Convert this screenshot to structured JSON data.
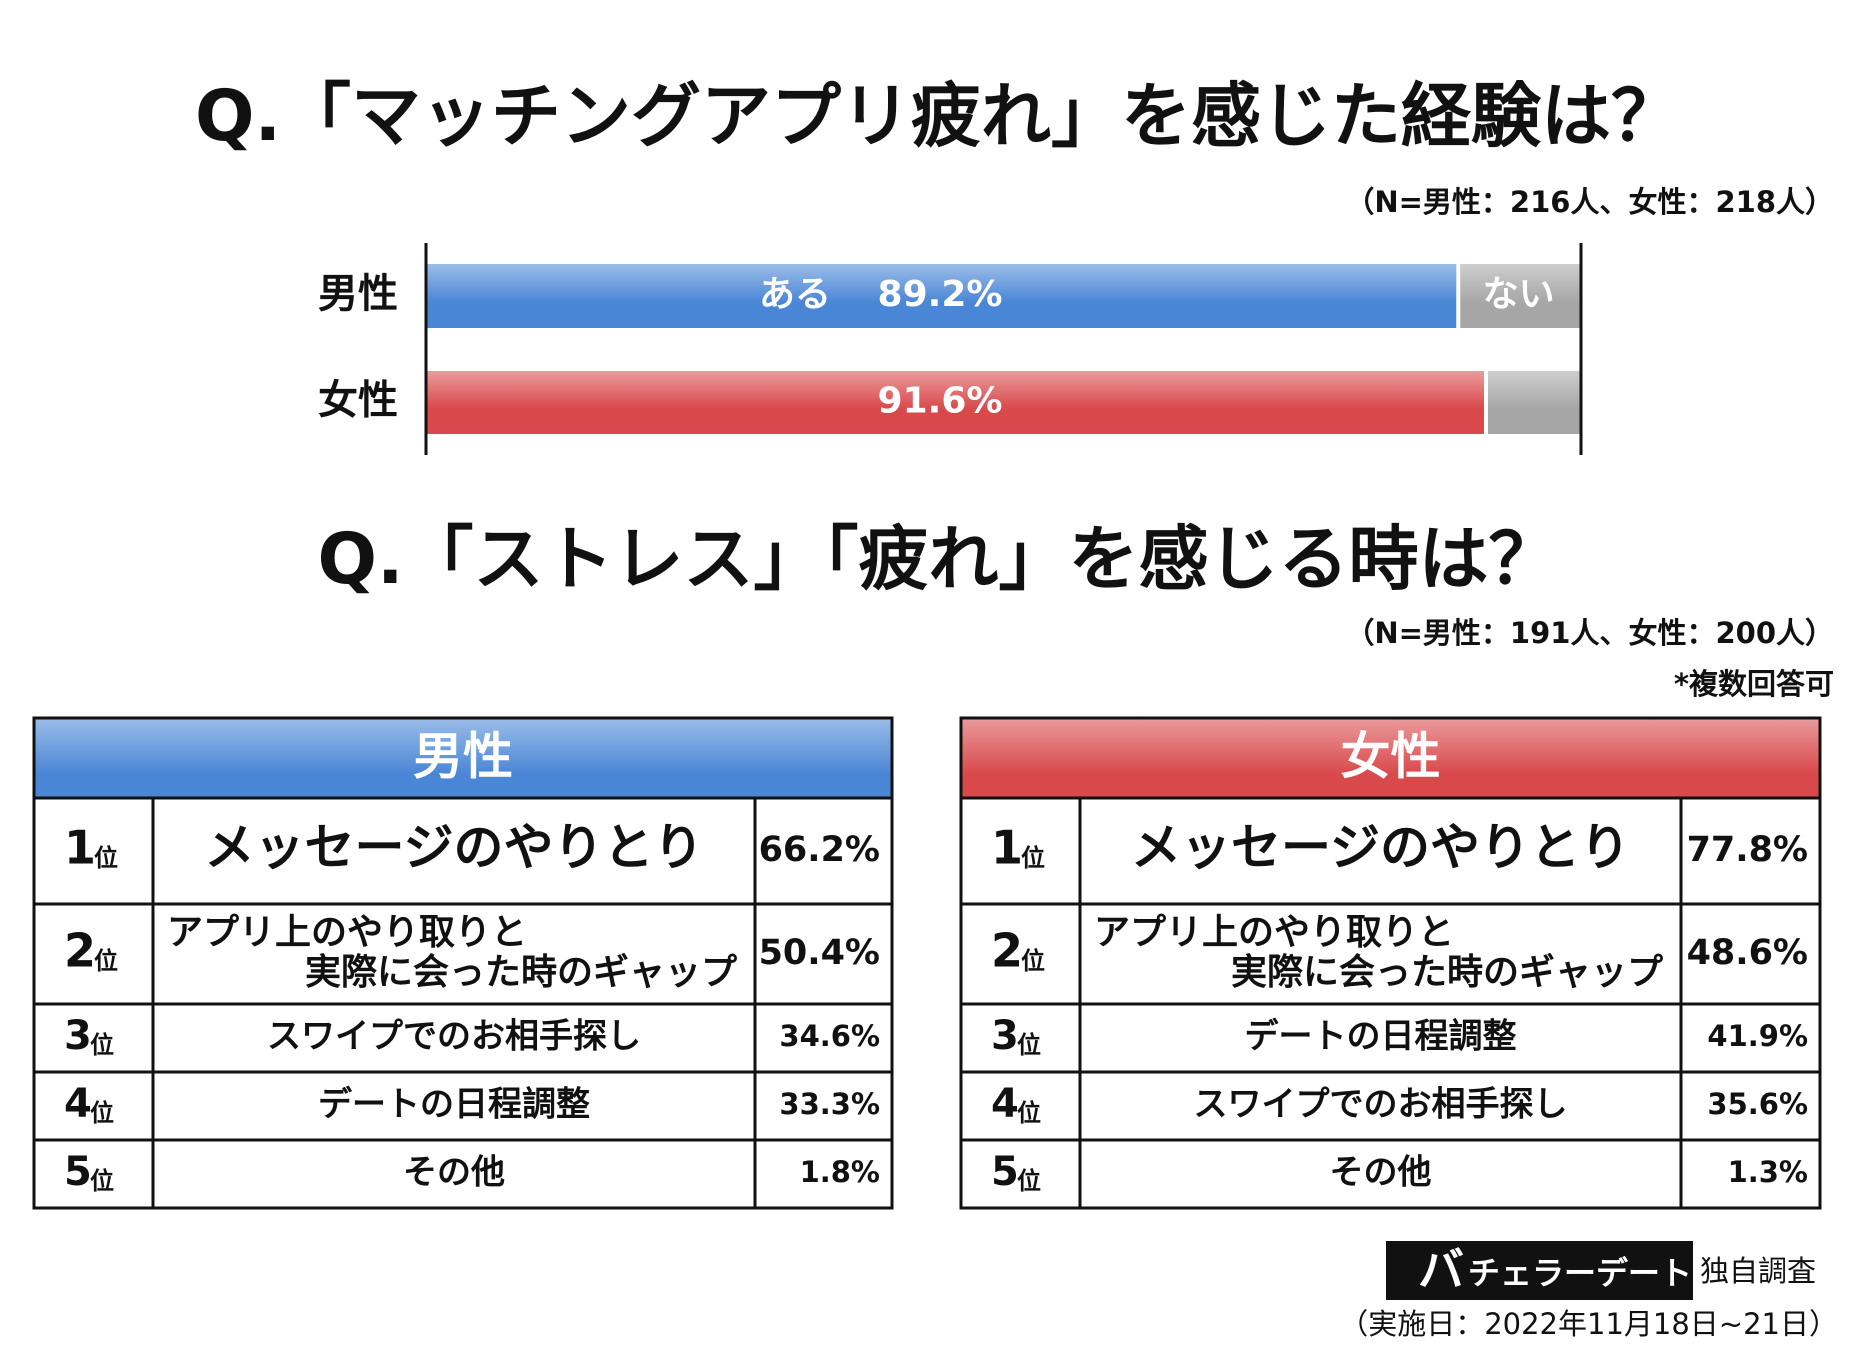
{
  "chart_data": {
    "type": "stacked-bar",
    "title": "Q.「マッチングアプリ疲れ」を感じた経験は？",
    "subtitle": "（N=男性：216人、女性：218人）",
    "categories": [
      "男性",
      "女性"
    ],
    "series": [
      {
        "name": "ある",
        "colors": [
          "#4a86d6",
          "#d9494b"
        ],
        "values": [
          89.2,
          91.6
        ],
        "value_labels": [
          "89.2%",
          "91.6%"
        ]
      },
      {
        "name": "ない",
        "color": "#a6a6a6",
        "values": [
          10.8,
          8.4
        ]
      }
    ],
    "xlim": [
      0,
      100
    ]
  },
  "ranking": {
    "title": "Q.「ストレス」「疲れ」を感じる時は？",
    "note": "（N=男性：191人、女性：200人）",
    "note2": "*複数回答可",
    "rank_suffix": "位",
    "tables": [
      {
        "header": "男性",
        "color": "#4a86d6",
        "rows": [
          {
            "rank": "1",
            "item": [
              "メッセージのやりとり"
            ],
            "percent": "66.2%"
          },
          {
            "rank": "2",
            "item": [
              "アプリ上のやり取りと",
              "実際に会った時のギャップ"
            ],
            "percent": "50.4%"
          },
          {
            "rank": "3",
            "item": [
              "スワイプでのお相手探し"
            ],
            "percent": "34.6%"
          },
          {
            "rank": "4",
            "item": [
              "デートの日程調整"
            ],
            "percent": "33.3%"
          },
          {
            "rank": "5",
            "item": [
              "その他"
            ],
            "percent": "1.8%"
          }
        ]
      },
      {
        "header": "女性",
        "color": "#d9494b",
        "rows": [
          {
            "rank": "1",
            "item": [
              "メッセージのやりとり"
            ],
            "percent": "77.8%"
          },
          {
            "rank": "2",
            "item": [
              "アプリ上のやり取りと",
              "実際に会った時のギャップ"
            ],
            "percent": "48.6%"
          },
          {
            "rank": "3",
            "item": [
              "デートの日程調整"
            ],
            "percent": "41.9%"
          },
          {
            "rank": "4",
            "item": [
              "スワイプでのお相手探し"
            ],
            "percent": "35.6%"
          },
          {
            "rank": "5",
            "item": [
              "その他"
            ],
            "percent": "1.3%"
          }
        ]
      }
    ]
  },
  "footer": {
    "logo_first": "バ",
    "logo_rest": "チェラーデート",
    "label": "独自調査",
    "date": "（実施日：2022年11月18日~21日）"
  }
}
